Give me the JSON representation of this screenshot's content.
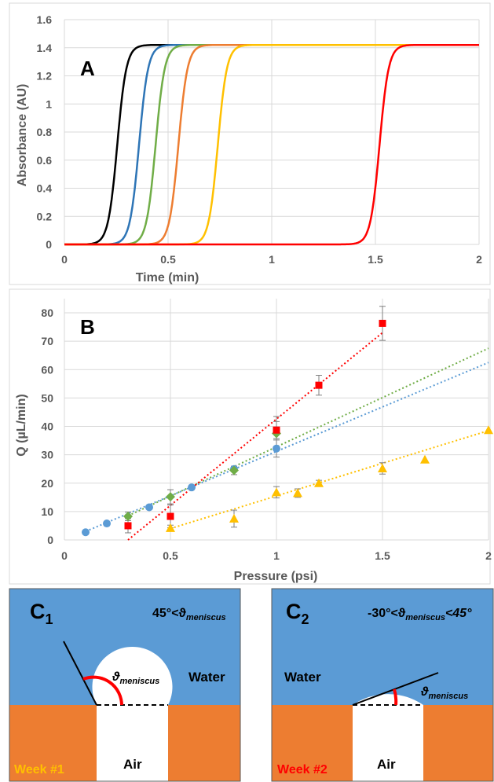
{
  "panelA": {
    "label": "A",
    "xlabel": "Time (min)",
    "ylabel": "Absorbance (AU)",
    "x_ticks": [
      "0",
      "0.5",
      "1",
      "1.5",
      "2"
    ],
    "y_ticks": [
      "0",
      "0.2",
      "0.4",
      "0.6",
      "0.8",
      "1",
      "1.2",
      "1.4",
      "1.6"
    ]
  },
  "panelB": {
    "label": "B",
    "xlabel": "Pressure (psi)",
    "ylabel": "Q (µL/min)",
    "x_ticks": [
      "0",
      "0.5",
      "1",
      "1.5",
      "2"
    ],
    "y_ticks": [
      "0",
      "10",
      "20",
      "30",
      "40",
      "50",
      "60",
      "70",
      "80"
    ]
  },
  "chart_data": [
    {
      "type": "line",
      "xlabel": "Time (min)",
      "ylabel": "Absorbance (AU)",
      "xlim": [
        0,
        2
      ],
      "ylim": [
        0,
        1.6
      ],
      "grid": true,
      "plateau": 1.42,
      "series": [
        {
          "color": "#000000",
          "midpoint": 0.255,
          "x_end": 1.0
        },
        {
          "color": "#2E75B6",
          "midpoint": 0.36,
          "x_end": 1.0
        },
        {
          "color": "#70AD47",
          "midpoint": 0.44,
          "x_end": 1.0
        },
        {
          "color": "#ED7D31",
          "midpoint": 0.55,
          "x_end": 2.0
        },
        {
          "color": "#FFC000",
          "midpoint": 0.74,
          "x_end": 2.0
        },
        {
          "color": "#FF0000",
          "midpoint": 1.52,
          "x_end": 2.0
        }
      ]
    },
    {
      "type": "scatter",
      "xlabel": "Pressure (psi)",
      "ylabel": "Q (µL/min)",
      "xlim": [
        0,
        2
      ],
      "ylim": [
        0,
        85
      ],
      "grid": true,
      "series": [
        {
          "color": "#5B9BD5",
          "marker": "circle",
          "points": [
            [
              0.1,
              2.7
            ],
            [
              0.2,
              5.8
            ],
            [
              0.4,
              11.5
            ],
            [
              0.6,
              18.5
            ],
            [
              0.8,
              25.0
            ],
            [
              1.0,
              32.2
            ]
          ],
          "errors": [
            0,
            0,
            0,
            0,
            0,
            3
          ],
          "trend": [
            [
              0.1,
              3.0
            ],
            [
              2.0,
              62.5
            ]
          ]
        },
        {
          "color": "#70AD47",
          "marker": "diamond",
          "points": [
            [
              0.3,
              8.3
            ],
            [
              0.5,
              15.2
            ],
            [
              0.8,
              24.5
            ],
            [
              1.0,
              37.5
            ]
          ],
          "errors": [
            1.5,
            2.5,
            1.5,
            6
          ],
          "trend": [
            [
              0.3,
              8.5
            ],
            [
              2.0,
              67.5
            ]
          ]
        },
        {
          "color": "#FF0000",
          "marker": "square",
          "points": [
            [
              0.3,
              5.0
            ],
            [
              0.5,
              8.3
            ],
            [
              1.0,
              38.7
            ],
            [
              1.2,
              54.5
            ],
            [
              1.5,
              76.3
            ]
          ],
          "errors": [
            2.5,
            4,
            3,
            3.5,
            6
          ],
          "trend": [
            [
              0.3,
              0.0
            ],
            [
              1.5,
              73.0
            ]
          ]
        },
        {
          "color": "#FFC000",
          "marker": "triangle",
          "points": [
            [
              0.5,
              4.2
            ],
            [
              0.8,
              7.5
            ],
            [
              1.0,
              16.8
            ],
            [
              1.1,
              16.5
            ],
            [
              1.2,
              20.0
            ],
            [
              1.5,
              25.2
            ],
            [
              1.7,
              28.3
            ],
            [
              2.0,
              38.7
            ]
          ],
          "errors": [
            1,
            3,
            2,
            1.5,
            1,
            2,
            0,
            0
          ],
          "trend": [
            [
              0.5,
              4.0
            ],
            [
              2.0,
              38.5
            ]
          ]
        }
      ]
    }
  ],
  "panelC1": {
    "label": "C",
    "subscript": "1",
    "angle_text": "45°<ϑ",
    "angle_sub": "meniscus",
    "water_label": "Water",
    "air_label": "Air",
    "theta": "ϑ",
    "theta_sub": "meniscus",
    "week_label": "Week #1",
    "week_color": "#FFC000"
  },
  "panelC2": {
    "label": "C",
    "subscript": "2",
    "angle_text_pre": "-30°<ϑ",
    "angle_sub": "meniscus",
    "angle_text_post": "<45°",
    "water_label": "Water",
    "air_label": "Air",
    "theta": "ϑ",
    "theta_sub": "meniscus",
    "week_label": "Week #2",
    "week_color": "#FF0000"
  },
  "colors": {
    "water": "#5B9BD5",
    "substrate": "#ED7D31",
    "grid": "#D9D9D9",
    "axis_text": "#595959"
  }
}
